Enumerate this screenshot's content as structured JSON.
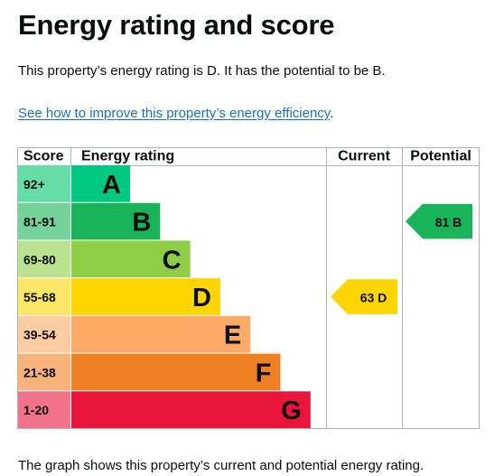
{
  "heading": "Energy rating and score",
  "intro": "This property’s energy rating is D. It has the potential to be B.",
  "link": {
    "text": "See how to improve this property’s energy efficiency",
    "suffix": "."
  },
  "footer": "The graph shows this property’s current and potential energy rating.",
  "chart_data": {
    "type": "bar",
    "headers": {
      "score": "Score",
      "rating": "Energy rating",
      "current": "Current",
      "potential": "Potential"
    },
    "bands": [
      {
        "letter": "A",
        "range": "92+",
        "color": "#00c781",
        "score_color": "#66dda7"
      },
      {
        "letter": "B",
        "range": "81-91",
        "color": "#19b459",
        "score_color": "#75d29b"
      },
      {
        "letter": "C",
        "range": "69-80",
        "color": "#8dce46",
        "score_color": "#bbe290"
      },
      {
        "letter": "D",
        "range": "55-68",
        "color": "#ffd500",
        "score_color": "#ffe666"
      },
      {
        "letter": "E",
        "range": "39-54",
        "color": "#fcaa65",
        "score_color": "#fdcca3"
      },
      {
        "letter": "F",
        "range": "21-38",
        "color": "#ef8023",
        "score_color": "#f5b37b"
      },
      {
        "letter": "G",
        "range": "1-20",
        "color": "#e9153b",
        "score_color": "#f27389"
      }
    ],
    "current": {
      "score": 63,
      "letter": "D",
      "label": "63 D",
      "color": "#ffd500"
    },
    "potential": {
      "score": 81,
      "letter": "B",
      "label": "81 B",
      "color": "#19b459"
    }
  }
}
